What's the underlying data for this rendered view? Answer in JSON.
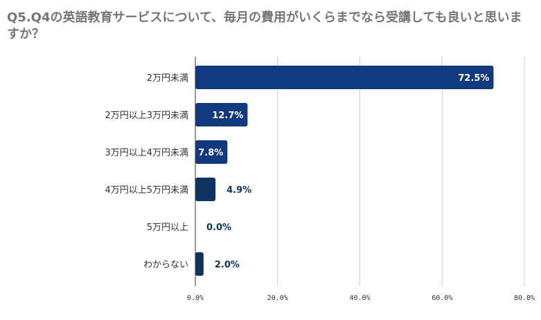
{
  "chart_data": {
    "type": "bar",
    "orientation": "horizontal",
    "title": "Q5.Q4の英語教育サービスについて、毎月の費用がいくらまでなら受講しても良いと思いますか？",
    "categories": [
      "2万円未満",
      "2万円以上3万円未満",
      "3万円以上4万円未満",
      "4万円以上5万円未満",
      "5万円以上",
      "わからない"
    ],
    "values": [
      72.5,
      12.7,
      7.8,
      4.9,
      0.0,
      2.0
    ],
    "value_labels": [
      "72.5%",
      "12.7%",
      "7.8%",
      "4.9%",
      "0.0%",
      "2.0%"
    ],
    "bar_colors": [
      "#10397f",
      "#10397f",
      "#10397f",
      "#0d3460",
      "#0d3460",
      "#0d3460"
    ],
    "value_label_colors": [
      "#ffffff",
      "#ffffff",
      "#ffffff",
      "#0d3460",
      "#0d3460",
      "#0d3460"
    ],
    "value_label_inside": [
      true,
      true,
      true,
      false,
      false,
      false
    ],
    "xlim": [
      0,
      80
    ],
    "x_ticks": [
      "0.0%",
      "20.0%",
      "40.0%",
      "60.0%",
      "80.0%"
    ],
    "grid": true,
    "legend": "none"
  }
}
